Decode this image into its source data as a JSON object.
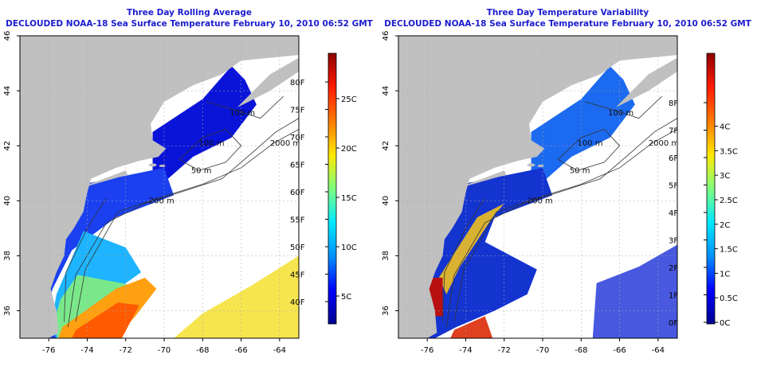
{
  "panels": [
    {
      "title": "Three Day Rolling Average",
      "subtitle": "DECLOUDED NOAA-18 Sea Surface Temperature February 10, 2010 06:52 GMT",
      "colorbar_f": [
        "40F",
        "45F",
        "50F",
        "55F",
        "60F",
        "65F",
        "70F",
        "75F",
        "80F"
      ],
      "colorbar_c": [
        "5C",
        "10C",
        "15C",
        "20C",
        "25C"
      ],
      "colors": [
        "#00008f",
        "#0000ff",
        "#0090ff",
        "#00e8ff",
        "#7fff7f",
        "#ffe800",
        "#ff7a00",
        "#ff1a00",
        "#8f0000"
      ]
    },
    {
      "title": "Three Day Temperature Variability",
      "subtitle": "DECLOUDED NOAA-18 Sea Surface Temperature February 10, 2010 06:52 GMT",
      "colorbar_f": [
        "0F",
        "1F",
        "2F",
        "3F",
        "4F",
        "5F",
        "6F",
        "7F",
        "8F"
      ],
      "colorbar_c": [
        "0C",
        "0.5C",
        "1C",
        "1.5C",
        "2C",
        "2.5C",
        "3C",
        "3.5C",
        "4C"
      ],
      "colors": [
        "#00008f",
        "#0000ff",
        "#0090ff",
        "#00e8ff",
        "#7fff7f",
        "#ffe800",
        "#ff7a00",
        "#ff1a00",
        "#8f0000"
      ]
    }
  ],
  "map": {
    "lat_ticks": [
      "36",
      "38",
      "40",
      "42",
      "44",
      "46"
    ],
    "lon_ticks": [
      "-76",
      "-74",
      "-72",
      "-70",
      "-68",
      "-66",
      "-64"
    ],
    "isobath_labels": [
      "200 m",
      "100 m",
      "2000 m",
      "100 m",
      "50 m"
    ],
    "land_color": "#c0c0c0"
  }
}
